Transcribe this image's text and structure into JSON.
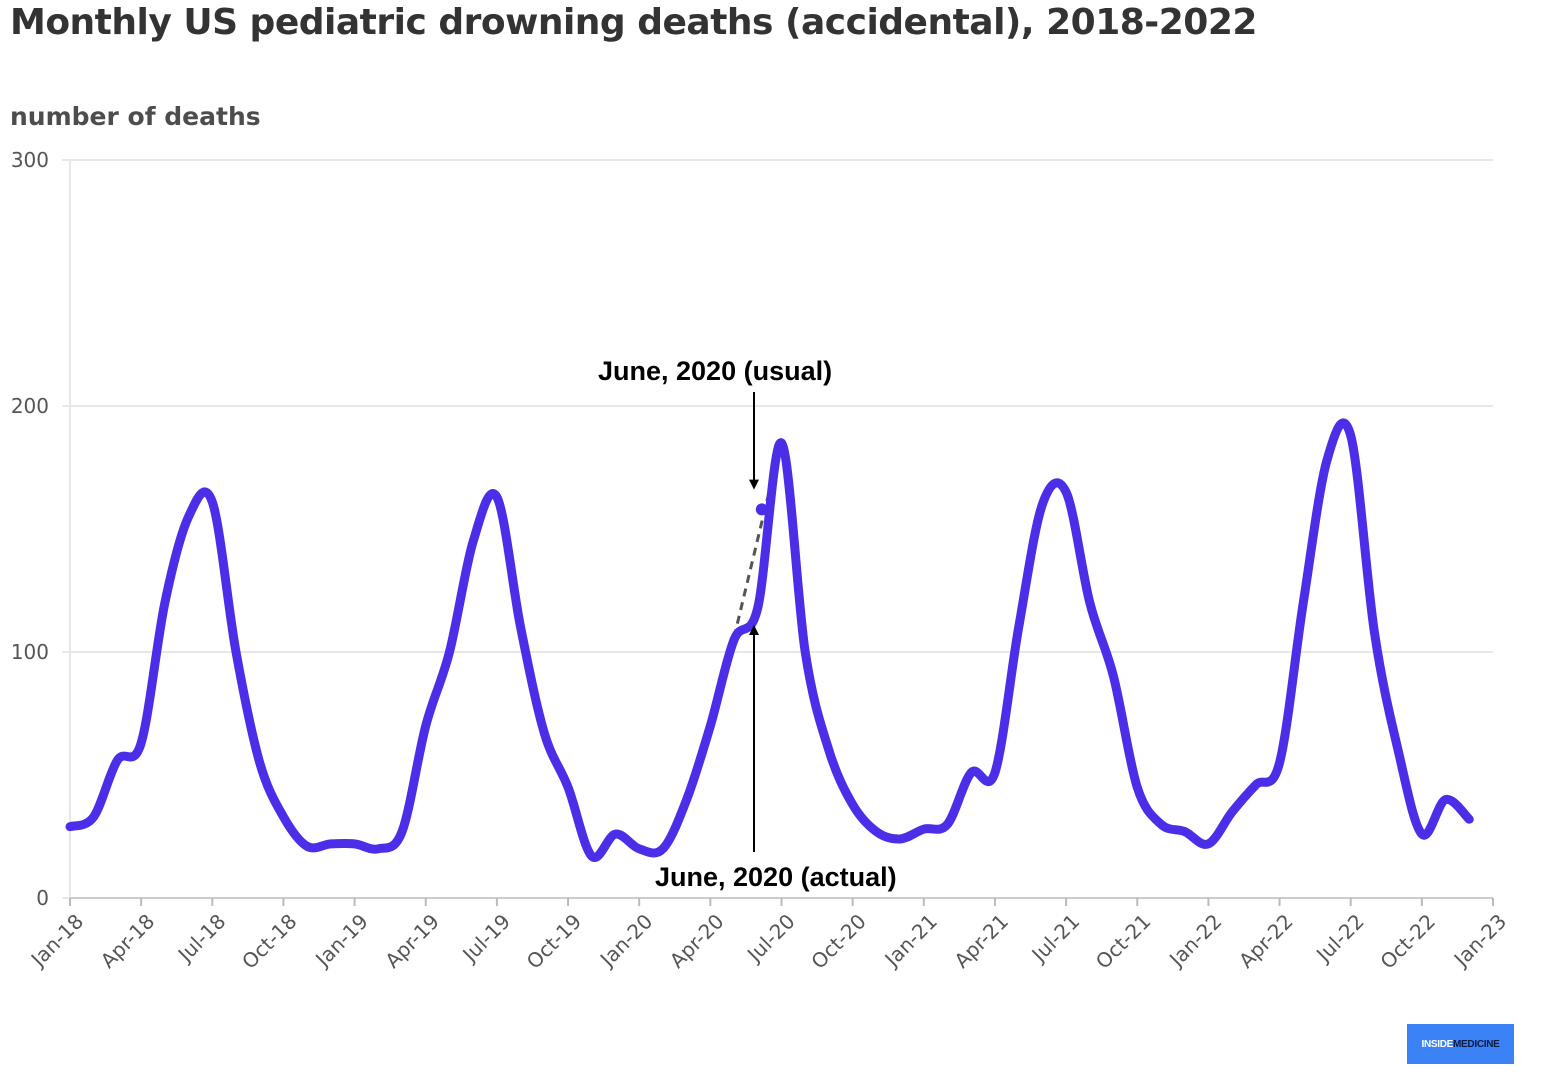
{
  "title": "Monthly US pediatric drowning deaths (accidental), 2018-2022",
  "logo": {
    "part1": "INSIDE",
    "part2": "MEDICINE"
  },
  "colors": {
    "line": "#4b2ee8",
    "grid": "#e8e8e8",
    "usual": "#555555"
  },
  "chart_data": {
    "type": "line",
    "title": "Monthly US pediatric drowning deaths (accidental), 2018-2022",
    "ylabel": "number of deaths",
    "xlabel": "",
    "ylim": [
      0,
      300
    ],
    "yticks": [
      0,
      100,
      200,
      300
    ],
    "xlim": [
      "2018-01",
      "2023-01"
    ],
    "xticks": [
      "Jan-18",
      "Apr-18",
      "Jul-18",
      "Oct-18",
      "Jan-19",
      "Apr-19",
      "Jul-19",
      "Oct-19",
      "Jan-20",
      "Apr-20",
      "Jul-20",
      "Oct-20",
      "Jan-21",
      "Apr-21",
      "Jul-21",
      "Oct-21",
      "Jan-22",
      "Apr-22",
      "Jul-22",
      "Oct-22",
      "Jan-23"
    ],
    "grid": true,
    "series": [
      {
        "x": [
          "2018-01",
          "2018-02",
          "2018-03",
          "2018-04",
          "2018-05",
          "2018-06",
          "2018-07",
          "2018-08",
          "2018-09",
          "2018-10",
          "2018-11",
          "2018-12",
          "2019-01",
          "2019-02",
          "2019-03",
          "2019-04",
          "2019-05",
          "2019-06",
          "2019-07",
          "2019-08",
          "2019-09",
          "2019-10",
          "2019-11",
          "2019-12",
          "2020-01",
          "2020-02",
          "2020-03",
          "2020-04",
          "2020-05",
          "2020-06",
          "2020-07",
          "2020-08",
          "2020-09",
          "2020-10",
          "2020-11",
          "2020-12",
          "2021-01",
          "2021-02",
          "2021-03",
          "2021-04",
          "2021-05",
          "2021-06",
          "2021-07",
          "2021-08",
          "2021-09",
          "2021-10",
          "2021-11",
          "2021-12",
          "2022-01",
          "2022-02",
          "2022-03",
          "2022-04",
          "2022-05",
          "2022-06",
          "2022-07",
          "2022-08",
          "2022-09",
          "2022-10",
          "2022-11",
          "2022-12"
        ],
        "values": [
          29,
          33,
          56,
          63,
          120,
          155,
          161,
          100,
          55,
          33,
          21,
          22,
          22,
          20,
          27,
          70,
          100,
          145,
          163,
          110,
          67,
          45,
          17,
          26,
          20,
          20,
          40,
          70,
          105,
          118,
          185,
          100,
          60,
          38,
          27,
          24,
          28,
          30,
          51,
          51,
          110,
          160,
          165,
          120,
          90,
          45,
          30,
          27,
          22,
          35,
          46,
          55,
          120,
          178,
          188,
          108,
          60,
          26,
          40,
          32
        ]
      }
    ],
    "highlight": {
      "x": "2020-06",
      "usual": 158,
      "actual": 118
    },
    "usual_trend": {
      "x": [
        "2020-05",
        "2020-07"
      ],
      "values": [
        106,
        186
      ]
    },
    "annotations": [
      {
        "text": "June, 2020 (usual)",
        "target": "usual"
      },
      {
        "text": "June, 2020 (actual)",
        "target": "actual"
      }
    ]
  }
}
